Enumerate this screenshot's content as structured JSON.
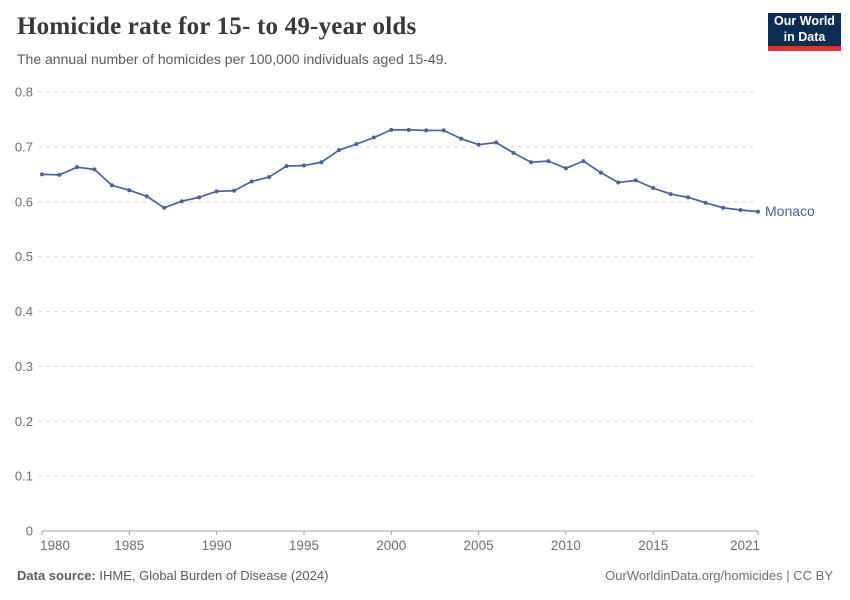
{
  "header": {
    "title": "Homicide rate for 15- to 49-year olds",
    "subtitle": "The annual number of homicides per 100,000 individuals aged 15-49."
  },
  "logo": {
    "line1": "Our World",
    "line2": "in Data",
    "bg_color": "#0d2e54",
    "accent_color": "#d0393c"
  },
  "chart_data": {
    "type": "line",
    "title": "Homicide rate for 15- to 49-year olds",
    "xlabel": "",
    "ylabel": "",
    "xlim": [
      1980,
      2021
    ],
    "ylim": [
      0,
      0.8
    ],
    "grid": "horizontal-dashed",
    "legend_position": "end-of-line-label",
    "x_ticks": [
      {
        "v": 1980,
        "label": "1980"
      },
      {
        "v": 1985,
        "label": "1985"
      },
      {
        "v": 1990,
        "label": "1990"
      },
      {
        "v": 1995,
        "label": "1995"
      },
      {
        "v": 2000,
        "label": "2000"
      },
      {
        "v": 2005,
        "label": "2005"
      },
      {
        "v": 2010,
        "label": "2010"
      },
      {
        "v": 2015,
        "label": "2015"
      },
      {
        "v": 2021,
        "label": "2021"
      }
    ],
    "y_ticks": [
      {
        "v": 0,
        "label": "0"
      },
      {
        "v": 0.1,
        "label": "0.1"
      },
      {
        "v": 0.2,
        "label": "0.2"
      },
      {
        "v": 0.3,
        "label": "0.3"
      },
      {
        "v": 0.4,
        "label": "0.4"
      },
      {
        "v": 0.5,
        "label": "0.5"
      },
      {
        "v": 0.6,
        "label": "0.6"
      },
      {
        "v": 0.7,
        "label": "0.7"
      },
      {
        "v": 0.8,
        "label": "0.8"
      }
    ],
    "series": [
      {
        "name": "Monaco",
        "color": "#48639c",
        "x": [
          1980,
          1981,
          1982,
          1983,
          1984,
          1985,
          1986,
          1987,
          1988,
          1989,
          1990,
          1991,
          1992,
          1993,
          1994,
          1995,
          1996,
          1997,
          1998,
          1999,
          2000,
          2001,
          2002,
          2003,
          2004,
          2005,
          2006,
          2007,
          2008,
          2009,
          2010,
          2011,
          2012,
          2013,
          2014,
          2015,
          2016,
          2017,
          2018,
          2019,
          2020,
          2021
        ],
        "values": [
          0.65,
          0.649,
          0.663,
          0.659,
          0.63,
          0.621,
          0.61,
          0.589,
          0.601,
          0.608,
          0.619,
          0.62,
          0.637,
          0.645,
          0.665,
          0.666,
          0.672,
          0.694,
          0.705,
          0.717,
          0.731,
          0.731,
          0.73,
          0.73,
          0.715,
          0.704,
          0.708,
          0.689,
          0.672,
          0.674,
          0.661,
          0.674,
          0.653,
          0.635,
          0.639,
          0.625,
          0.614,
          0.608,
          0.598,
          0.589,
          0.585,
          0.582
        ]
      }
    ]
  },
  "footer": {
    "datasource_label": "Data source:",
    "datasource_value": "IHME, Global Burden of Disease (2024)",
    "credit": "OurWorldinData.org/homicides | CC BY"
  }
}
